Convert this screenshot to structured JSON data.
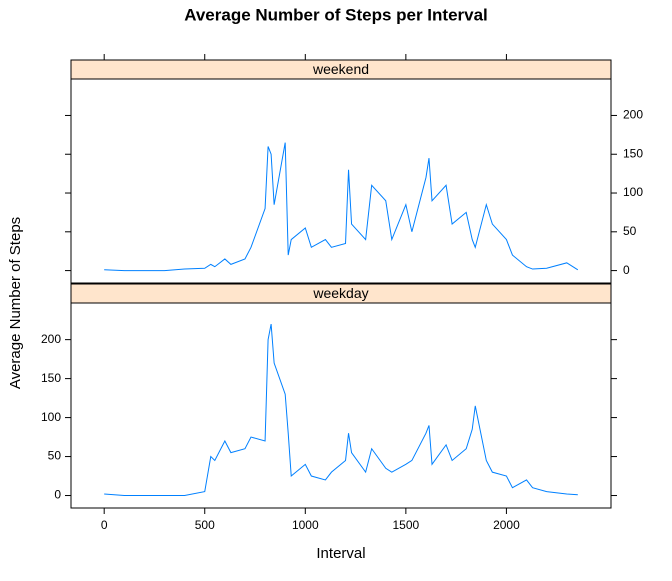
{
  "chart_data": {
    "type": "line",
    "title": "Average Number of Steps per Interval",
    "x_label": "Interval",
    "y_label": "Average Number of Steps",
    "x": [
      0,
      100,
      200,
      300,
      400,
      500,
      530,
      550,
      600,
      630,
      700,
      730,
      800,
      815,
      830,
      845,
      900,
      915,
      930,
      1000,
      1030,
      1100,
      1130,
      1200,
      1215,
      1230,
      1300,
      1330,
      1400,
      1430,
      1500,
      1530,
      1600,
      1615,
      1630,
      1700,
      1730,
      1800,
      1830,
      1845,
      1900,
      1930,
      2000,
      2030,
      2100,
      2130,
      2200,
      2300,
      2355
    ],
    "series": [
      {
        "name": "weekend",
        "color": "#0080ff",
        "values": [
          1,
          0,
          0,
          0,
          2,
          3,
          8,
          5,
          15,
          8,
          15,
          30,
          80,
          160,
          150,
          85,
          165,
          20,
          40,
          55,
          30,
          40,
          30,
          35,
          130,
          60,
          40,
          110,
          90,
          40,
          85,
          50,
          120,
          145,
          90,
          110,
          60,
          75,
          40,
          30,
          85,
          60,
          40,
          20,
          5,
          2,
          3,
          10,
          1
        ]
      },
      {
        "name": "weekday",
        "color": "#0080ff",
        "values": [
          2,
          0,
          0,
          0,
          0,
          5,
          50,
          45,
          70,
          55,
          60,
          75,
          70,
          200,
          220,
          170,
          130,
          80,
          25,
          40,
          25,
          20,
          30,
          45,
          80,
          55,
          30,
          60,
          35,
          30,
          40,
          45,
          80,
          90,
          40,
          65,
          45,
          60,
          85,
          115,
          45,
          30,
          25,
          10,
          20,
          10,
          5,
          2,
          1
        ]
      }
    ],
    "xlim": [
      -165,
      2520
    ],
    "ylim": [
      -16,
      247
    ],
    "xticks": [
      0,
      500,
      1000,
      1500,
      2000
    ],
    "yticks": [
      0,
      50,
      100,
      150,
      200
    ],
    "strip_color": "#ffe5cc"
  }
}
